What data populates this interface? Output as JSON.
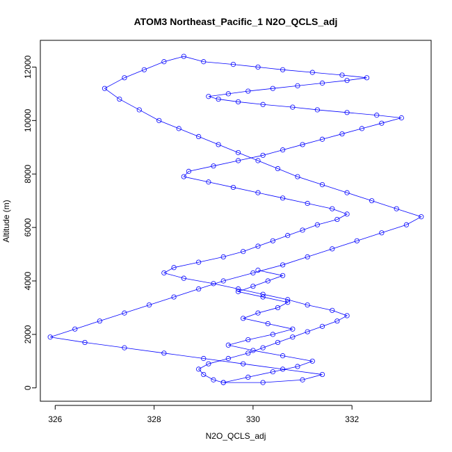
{
  "chart_data": {
    "type": "scatter",
    "title": "ATOM3 Northeast_Pacific_1 N2O_QCLS_adj",
    "xlabel": "N2O_QCLS_adj",
    "ylabel": "Altitude (m)",
    "xlim": [
      325.7,
      333.6
    ],
    "ylim": [
      -500,
      13000
    ],
    "xticks": [
      326,
      328,
      330,
      332
    ],
    "yticks": [
      0,
      2000,
      4000,
      6000,
      8000,
      10000,
      12000
    ],
    "grid": false,
    "legend": "none",
    "colors": {
      "series": "#0000ff",
      "axes": "#000000",
      "background": "#ffffff"
    },
    "series": [
      {
        "mode": "lines+markers",
        "marker": "open-circle",
        "x": [
          329.4,
          329.2,
          329.0,
          328.9,
          329.1,
          329.5,
          329.9,
          330.2,
          330.5,
          330.8,
          331.1,
          331.4,
          331.7,
          331.9,
          331.6,
          331.1,
          330.7,
          330.2,
          329.7,
          329.2,
          328.6,
          328.2,
          328.4,
          328.9,
          329.4,
          329.8,
          330.1,
          330.4,
          330.7,
          331.0,
          331.3,
          331.7,
          331.9,
          331.6,
          331.1,
          330.6,
          330.1,
          329.6,
          329.1,
          328.6,
          328.7,
          329.2,
          329.7,
          330.2,
          330.6,
          331.0,
          331.4,
          331.8,
          332.2,
          332.6,
          333.0,
          332.5,
          331.9,
          331.3,
          330.8,
          330.2,
          329.7,
          329.3,
          329.1,
          329.5,
          329.9,
          330.4,
          330.9,
          331.4,
          331.9,
          332.3,
          331.8,
          331.2,
          330.6,
          330.1,
          329.6,
          329.0,
          328.6,
          328.2,
          327.8,
          327.4,
          327.0,
          327.3,
          327.7,
          328.1,
          328.5,
          328.9,
          329.3,
          329.7,
          330.1,
          330.5,
          330.9,
          331.4,
          331.9,
          332.4,
          332.9,
          333.4,
          333.1,
          332.6,
          332.1,
          331.6,
          331.1,
          330.6,
          330.0,
          329.4,
          328.9,
          328.4,
          327.9,
          327.4,
          326.9,
          326.4,
          325.9,
          326.6,
          327.4,
          328.2,
          329.0,
          329.8,
          330.6,
          331.4,
          331.0,
          330.2,
          329.4,
          329.9,
          330.4,
          330.9,
          331.2,
          330.6,
          330.0,
          329.5,
          329.9,
          330.4,
          330.8,
          330.3,
          329.8,
          330.1,
          330.5,
          330.7,
          330.2,
          329.7,
          330.0,
          330.3,
          330.6,
          330.1
        ],
        "y": [
          200,
          300,
          500,
          700,
          900,
          1100,
          1300,
          1500,
          1700,
          1900,
          2100,
          2300,
          2500,
          2700,
          2900,
          3100,
          3300,
          3500,
          3700,
          3900,
          4100,
          4300,
          4500,
          4700,
          4900,
          5100,
          5300,
          5500,
          5700,
          5900,
          6100,
          6300,
          6500,
          6700,
          6900,
          7100,
          7300,
          7500,
          7700,
          7900,
          8100,
          8300,
          8500,
          8700,
          8900,
          9100,
          9300,
          9500,
          9700,
          9900,
          10100,
          10200,
          10300,
          10400,
          10500,
          10600,
          10700,
          10800,
          10900,
          11000,
          11100,
          11200,
          11300,
          11400,
          11500,
          11600,
          11700,
          11800,
          11900,
          12000,
          12100,
          12200,
          12400,
          12200,
          11900,
          11600,
          11200,
          10800,
          10400,
          10000,
          9700,
          9400,
          9100,
          8800,
          8500,
          8200,
          7900,
          7600,
          7300,
          7000,
          6700,
          6400,
          6100,
          5800,
          5500,
          5200,
          4900,
          4600,
          4300,
          4000,
          3700,
          3400,
          3100,
          2800,
          2500,
          2200,
          1900,
          1700,
          1500,
          1300,
          1100,
          900,
          700,
          500,
          300,
          200,
          200,
          400,
          600,
          800,
          1000,
          1200,
          1400,
          1600,
          1800,
          2000,
          2200,
          2400,
          2600,
          2800,
          3000,
          3200,
          3400,
          3600,
          3800,
          4000,
          4200,
          4400
        ]
      }
    ]
  }
}
